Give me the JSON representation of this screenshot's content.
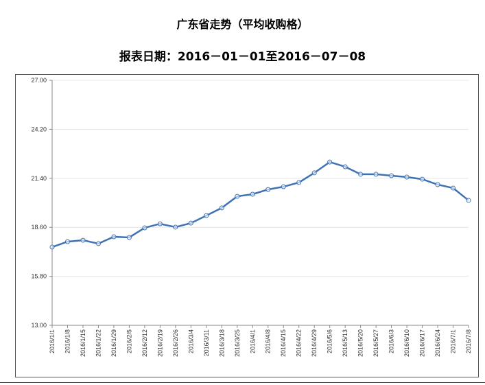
{
  "chart_data": {
    "type": "line",
    "title": "广东省走势（平均收购格）",
    "subtitle": "报表日期：2016－01－01至2016－07－08",
    "xlabel": "",
    "ylabel": "",
    "ylim": [
      13.0,
      27.0
    ],
    "yticks": [
      "13.00",
      "15.80",
      "18.60",
      "21.40",
      "24.20",
      "27.00"
    ],
    "grid": true,
    "legend": "none",
    "color": "#3f72b5",
    "categories": [
      "2016/1/1",
      "2016/1/8",
      "2016/1/15",
      "2016/1/22",
      "2016/1/29",
      "2016/2/5",
      "2016/2/12",
      "2016/2/19",
      "2016/2/26",
      "2016/3/4",
      "2016/3/11",
      "2016/3/18",
      "2016/3/25",
      "2016/4/1",
      "2016/4/8",
      "2016/4/15",
      "2016/4/22",
      "2016/4/29",
      "2016/5/6",
      "2016/5/13",
      "2016/5/20",
      "2016/5/27",
      "2016/6/3",
      "2016/6/10",
      "2016/6/17",
      "2016/6/24",
      "2016/7/1",
      "2016/7/8"
    ],
    "values": [
      17.47,
      17.78,
      17.86,
      17.67,
      18.06,
      18.02,
      18.57,
      18.8,
      18.61,
      18.84,
      19.27,
      19.71,
      20.37,
      20.49,
      20.76,
      20.92,
      21.16,
      21.71,
      22.33,
      22.06,
      21.63,
      21.63,
      21.55,
      21.47,
      21.35,
      21.04,
      20.84,
      20.14
    ]
  }
}
